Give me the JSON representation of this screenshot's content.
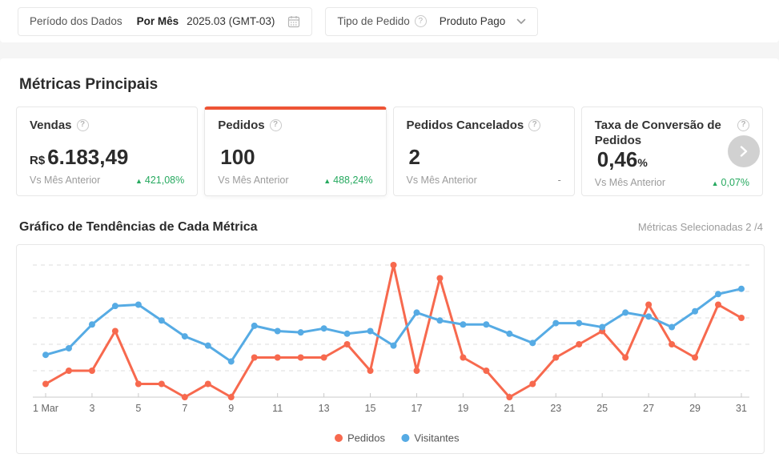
{
  "colors": {
    "accent": "#ee5435",
    "green": "#26a95f",
    "line_orange": "#f7694e",
    "line_blue": "#56abe4"
  },
  "filters": {
    "period": {
      "label": "Período dos Dados",
      "mode": "Por Mês",
      "value": "2025.03 (GMT-03)"
    },
    "order_type": {
      "label": "Tipo de Pedido",
      "help_glyph": "?",
      "value": "Produto Pago"
    }
  },
  "metrics_section": {
    "title": "Métricas Principais",
    "vs_label": "Vs Mês Anterior",
    "delta_up_glyph": "▲",
    "help_glyph": "?",
    "cards": [
      {
        "title": "Vendas",
        "value_prefix": "R$",
        "value": "6.183,49",
        "value_suffix": "",
        "delta": "421,08%",
        "delta_dir": "up",
        "selected": false
      },
      {
        "title": "Pedidos",
        "value_prefix": "",
        "value": "100",
        "value_suffix": "",
        "delta": "488,24%",
        "delta_dir": "up",
        "selected": true
      },
      {
        "title": "Pedidos Cancelados",
        "value_prefix": "",
        "value": "2",
        "value_suffix": "",
        "delta": "-",
        "delta_dir": "none",
        "selected": false
      },
      {
        "title": "Taxa de Conversão de Pedidos",
        "value_prefix": "",
        "value": "0,46",
        "value_suffix": "%",
        "delta": "0,07%",
        "delta_dir": "up",
        "selected": false
      }
    ]
  },
  "trend_section": {
    "title": "Gráfico de Tendências de Cada Métrica",
    "selected_info": "Métricas Selecionadas 2 /4"
  },
  "chart_data": {
    "type": "line",
    "x_days": [
      1,
      2,
      3,
      4,
      5,
      6,
      7,
      8,
      9,
      10,
      11,
      12,
      13,
      14,
      15,
      16,
      17,
      18,
      19,
      20,
      21,
      22,
      23,
      24,
      25,
      26,
      27,
      28,
      29,
      30,
      31
    ],
    "x_tick_labels": [
      "1 Mar",
      "3",
      "5",
      "7",
      "9",
      "11",
      "13",
      "15",
      "17",
      "19",
      "21",
      "23",
      "25",
      "27",
      "29",
      "31"
    ],
    "x_tick_days": [
      1,
      3,
      5,
      7,
      9,
      11,
      13,
      15,
      17,
      19,
      21,
      23,
      25,
      27,
      29,
      31
    ],
    "ylim": [
      0,
      10
    ],
    "grid_values": [
      2,
      4,
      6,
      8,
      10
    ],
    "y_axis_labels_visible": false,
    "legend_position": "bottom-center",
    "series": [
      {
        "name": "Pedidos",
        "color": "#f7694e",
        "values": [
          1,
          2,
          2,
          5,
          1,
          1,
          0,
          1,
          0,
          3,
          3,
          3,
          3,
          4,
          2,
          10,
          2,
          9,
          3,
          2,
          0,
          1,
          3,
          4,
          5,
          3,
          7,
          4,
          3,
          7,
          6
        ]
      },
      {
        "name": "Visitantes",
        "color": "#56abe4",
        "values": [
          3.2,
          3.7,
          5.5,
          6.9,
          7.0,
          5.8,
          4.6,
          3.9,
          2.7,
          5.4,
          5.0,
          4.9,
          5.2,
          4.8,
          5.0,
          3.9,
          6.4,
          5.8,
          5.5,
          5.5,
          4.8,
          4.1,
          5.6,
          5.6,
          5.3,
          6.4,
          6.1,
          5.3,
          6.5,
          7.8,
          8.2
        ]
      }
    ],
    "note": "Visitantes values are estimates on the same hidden axis scale; Pedidos daily values sum to 100."
  }
}
